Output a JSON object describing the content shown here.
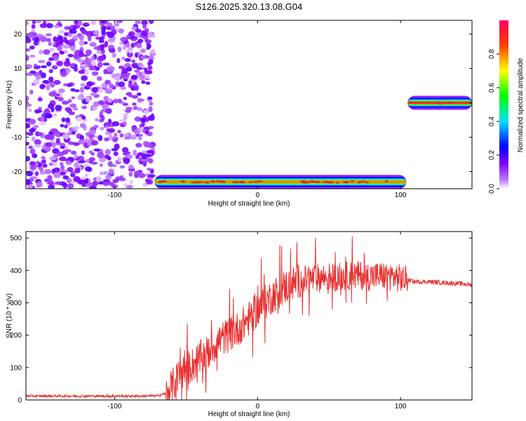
{
  "title": "S126.2025.320.13.08.G04",
  "chart_data": [
    {
      "type": "heatmap",
      "xlabel": "Height of straight line (km)",
      "ylabel": "Frequency (Hz)",
      "xlim": [
        -162,
        150
      ],
      "ylim": [
        -25,
        24
      ],
      "xticks": [
        -100,
        0,
        100
      ],
      "yticks": [
        -20,
        -10,
        0,
        10,
        20
      ],
      "colorbar": {
        "label": "Normalized spectral amplitude",
        "range": [
          0,
          1
        ],
        "ticks": [
          0,
          0.2,
          0.4,
          0.6,
          0.8
        ]
      },
      "features": [
        {
          "kind": "noise_patch",
          "x": [
            -162,
            -73
          ],
          "y": [
            -25,
            24
          ],
          "amplitude": 0.15
        },
        {
          "kind": "ridge",
          "x": [
            -72,
            104
          ],
          "y": -23,
          "amplitude": 0.8
        },
        {
          "kind": "ridge",
          "x": [
            105,
            150
          ],
          "y": 0,
          "amplitude": 0.9
        }
      ]
    },
    {
      "type": "line",
      "xlabel": "Height of straight line (km)",
      "ylabel": "SNR (10 * v/v)",
      "xlim": [
        -162,
        150
      ],
      "ylim": [
        0,
        520
      ],
      "xticks": [
        -100,
        0,
        100
      ],
      "yticks": [
        0,
        100,
        200,
        300,
        400,
        500
      ],
      "color": "#e83030",
      "series": [
        {
          "x": [
            -162,
            -140,
            -120,
            -100,
            -80,
            -70,
            -64,
            -60,
            -55,
            -50,
            -45,
            -40,
            -35,
            -30,
            -25,
            -20,
            -15,
            -10,
            -5,
            0,
            5,
            10,
            15,
            20,
            25,
            30,
            35,
            40,
            45,
            50,
            55,
            60,
            65,
            70,
            75,
            80,
            85,
            90,
            95,
            100,
            105,
            110,
            120,
            130,
            140,
            150
          ],
          "values": [
            12,
            12,
            12,
            12,
            12,
            13,
            20,
            40,
            75,
            95,
            110,
            130,
            145,
            170,
            190,
            200,
            215,
            235,
            255,
            280,
            300,
            320,
            335,
            350,
            360,
            370,
            372,
            375,
            378,
            380,
            380,
            382,
            383,
            385,
            383,
            382,
            383,
            383,
            381,
            375,
            370,
            365,
            365,
            362,
            360,
            355
          ]
        }
      ]
    }
  ]
}
